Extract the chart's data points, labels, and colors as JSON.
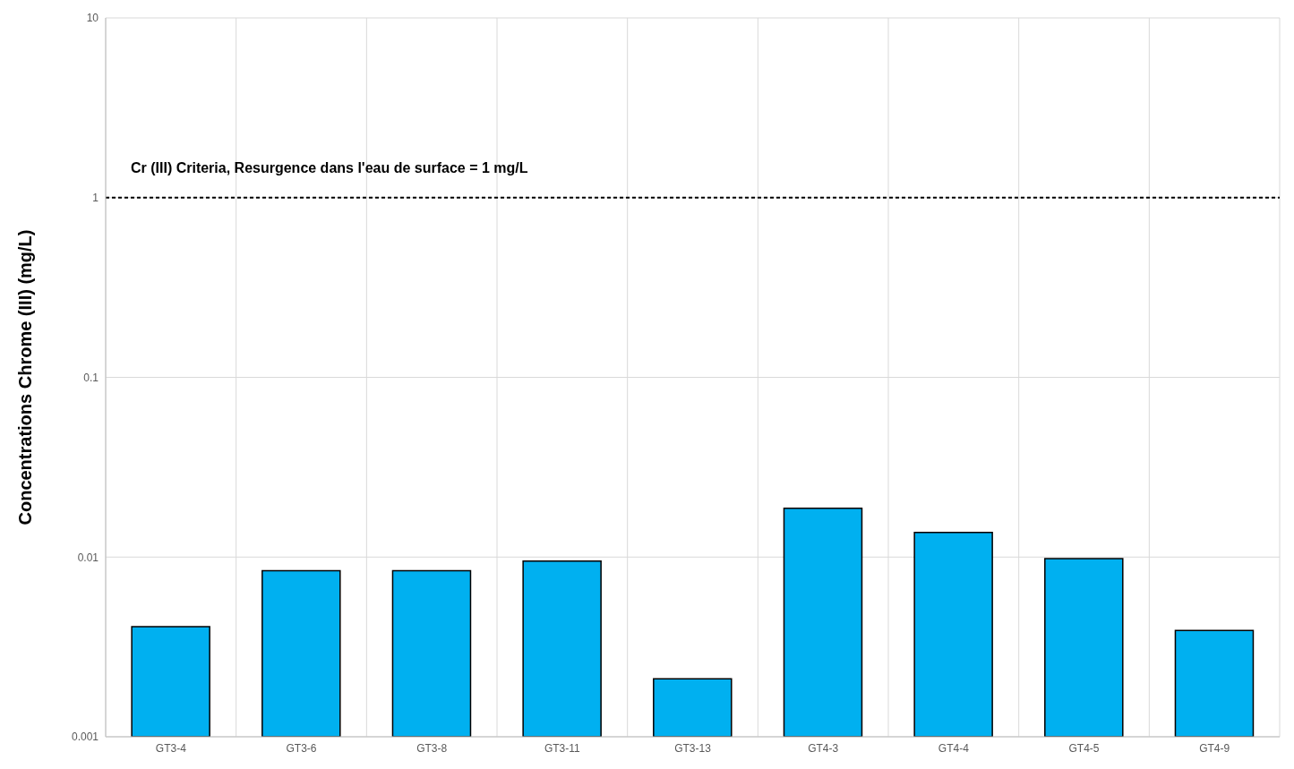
{
  "chart_data": {
    "type": "bar",
    "ylabel": "Concentrations Chrome (III) (mg/L)",
    "categories": [
      "GT3-4",
      "GT3-6",
      "GT3-8",
      "GT3-11",
      "GT3-13",
      "GT4-3",
      "GT4-4",
      "GT4-5",
      "GT4-9"
    ],
    "values": [
      0.0041,
      0.0084,
      0.0084,
      0.0095,
      0.0021,
      0.0187,
      0.0137,
      0.0098,
      0.0039
    ],
    "color": "#00b0f0",
    "log": true,
    "ylim": [
      0.001,
      10
    ],
    "yticks": [
      0.001,
      0.01,
      0.1,
      1,
      10
    ],
    "grid": true,
    "ref_lines": [
      {
        "axis": "y",
        "value": 1,
        "label": "Cr (III) Criteria, Resurgence dans l'eau de surface = 1 mg/L",
        "color": "#000000",
        "line_style": "dashed"
      }
    ]
  }
}
